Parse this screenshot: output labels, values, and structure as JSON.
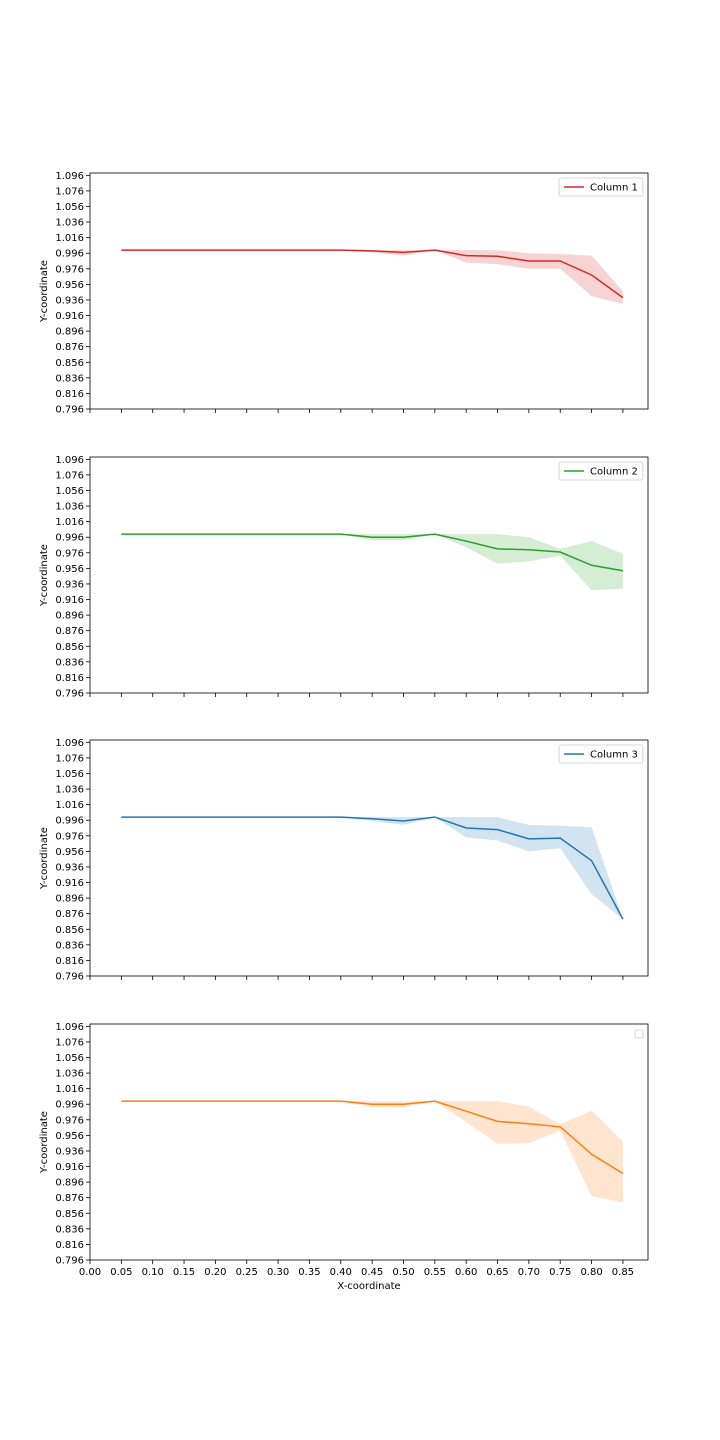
{
  "chart_data": [
    {
      "type": "line",
      "xlabel": "",
      "ylabel": "Y-coordinate",
      "xlim": [
        0.0,
        0.89
      ],
      "ylim": [
        0.796,
        1.099
      ],
      "yticks": [
        "0.796",
        "0.816",
        "0.836",
        "0.856",
        "0.876",
        "0.896",
        "0.916",
        "0.936",
        "0.956",
        "0.976",
        "0.996",
        "1.016",
        "1.036",
        "1.056",
        "1.076",
        "1.096"
      ],
      "show_xtick_labels": false,
      "grid": false,
      "legend": "top-right",
      "series": [
        {
          "name": "Column 1",
          "color": "#d62728",
          "x": [
            0.05,
            0.1,
            0.15,
            0.2,
            0.25,
            0.3,
            0.35,
            0.4,
            0.45,
            0.5,
            0.55,
            0.6,
            0.65,
            0.7,
            0.75,
            0.8,
            0.85
          ],
          "y": [
            1.0,
            1.0,
            1.0,
            1.0,
            1.0,
            1.0,
            1.0,
            1.0,
            0.999,
            0.997,
            1.0,
            0.993,
            0.992,
            0.986,
            0.986,
            0.968,
            0.939
          ],
          "lower": [
            1.0,
            1.0,
            1.0,
            1.0,
            1.0,
            1.0,
            1.0,
            1.0,
            0.997,
            0.993,
            1.0,
            0.984,
            0.982,
            0.976,
            0.976,
            0.941,
            0.931
          ],
          "upper": [
            1.0,
            1.0,
            1.0,
            1.0,
            1.0,
            1.0,
            1.0,
            1.0,
            1.0,
            1.0,
            1.0,
            1.0,
            1.0,
            0.996,
            0.995,
            0.993,
            0.947
          ]
        }
      ]
    },
    {
      "type": "line",
      "xlabel": "",
      "ylabel": "Y-coordinate",
      "xlim": [
        0.0,
        0.89
      ],
      "ylim": [
        0.796,
        1.099
      ],
      "yticks": [
        "0.796",
        "0.816",
        "0.836",
        "0.856",
        "0.876",
        "0.896",
        "0.916",
        "0.936",
        "0.956",
        "0.976",
        "0.996",
        "1.016",
        "1.036",
        "1.056",
        "1.076",
        "1.096"
      ],
      "show_xtick_labels": false,
      "grid": false,
      "legend": "top-right",
      "series": [
        {
          "name": "Column 2",
          "color": "#2ca02c",
          "x": [
            0.05,
            0.1,
            0.15,
            0.2,
            0.25,
            0.3,
            0.35,
            0.4,
            0.45,
            0.5,
            0.55,
            0.6,
            0.65,
            0.7,
            0.75,
            0.8,
            0.85
          ],
          "y": [
            1.0,
            1.0,
            1.0,
            1.0,
            1.0,
            1.0,
            1.0,
            1.0,
            0.996,
            0.996,
            1.0,
            0.991,
            0.981,
            0.98,
            0.977,
            0.96,
            0.953
          ],
          "lower": [
            1.0,
            1.0,
            1.0,
            1.0,
            1.0,
            1.0,
            1.0,
            1.0,
            0.992,
            0.992,
            1.0,
            0.983,
            0.962,
            0.965,
            0.972,
            0.928,
            0.93
          ],
          "upper": [
            1.0,
            1.0,
            1.0,
            1.0,
            1.0,
            1.0,
            1.0,
            1.0,
            1.0,
            1.0,
            1.0,
            1.0,
            1.0,
            0.996,
            0.981,
            0.991,
            0.975
          ]
        }
      ]
    },
    {
      "type": "line",
      "xlabel": "",
      "ylabel": "Y-coordinate",
      "xlim": [
        0.0,
        0.89
      ],
      "ylim": [
        0.796,
        1.099
      ],
      "yticks": [
        "0.796",
        "0.816",
        "0.836",
        "0.856",
        "0.876",
        "0.896",
        "0.916",
        "0.936",
        "0.956",
        "0.976",
        "0.996",
        "1.016",
        "1.036",
        "1.056",
        "1.076",
        "1.096"
      ],
      "show_xtick_labels": false,
      "grid": false,
      "legend": "top-right",
      "series": [
        {
          "name": "Column 3",
          "color": "#1f77b4",
          "x": [
            0.05,
            0.1,
            0.15,
            0.2,
            0.25,
            0.3,
            0.35,
            0.4,
            0.45,
            0.5,
            0.55,
            0.6,
            0.65,
            0.7,
            0.75,
            0.8,
            0.85
          ],
          "y": [
            1.0,
            1.0,
            1.0,
            1.0,
            1.0,
            1.0,
            1.0,
            1.0,
            0.998,
            0.995,
            1.0,
            0.986,
            0.984,
            0.972,
            0.973,
            0.944,
            0.869
          ],
          "lower": [
            1.0,
            1.0,
            1.0,
            1.0,
            1.0,
            1.0,
            1.0,
            1.0,
            0.995,
            0.99,
            1.0,
            0.974,
            0.97,
            0.956,
            0.96,
            0.901,
            0.869
          ],
          "upper": [
            1.0,
            1.0,
            1.0,
            1.0,
            1.0,
            1.0,
            1.0,
            1.0,
            1.0,
            1.0,
            1.0,
            1.0,
            1.0,
            0.99,
            0.989,
            0.987,
            0.869
          ]
        }
      ]
    },
    {
      "type": "line",
      "xlabel": "X-coordinate",
      "ylabel": "Y-coordinate",
      "xlim": [
        0.0,
        0.89
      ],
      "ylim": [
        0.796,
        1.099
      ],
      "yticks": [
        "0.796",
        "0.816",
        "0.836",
        "0.856",
        "0.876",
        "0.896",
        "0.916",
        "0.936",
        "0.956",
        "0.976",
        "0.996",
        "1.016",
        "1.036",
        "1.056",
        "1.076",
        "1.096"
      ],
      "xticks": [
        "0.00",
        "0.05",
        "0.10",
        "0.15",
        "0.20",
        "0.25",
        "0.30",
        "0.35",
        "0.40",
        "0.45",
        "0.50",
        "0.55",
        "0.60",
        "0.65",
        "0.70",
        "0.75",
        "0.80",
        "0.85"
      ],
      "show_xtick_labels": true,
      "grid": false,
      "legend": "top-right (empty)",
      "series": [
        {
          "name": "",
          "color": "#ff7f0e",
          "x": [
            0.05,
            0.1,
            0.15,
            0.2,
            0.25,
            0.3,
            0.35,
            0.4,
            0.45,
            0.5,
            0.55,
            0.6,
            0.65,
            0.7,
            0.75,
            0.8,
            0.85
          ],
          "y": [
            1.0,
            1.0,
            1.0,
            1.0,
            1.0,
            1.0,
            1.0,
            1.0,
            0.996,
            0.996,
            1.0,
            0.987,
            0.974,
            0.971,
            0.967,
            0.932,
            0.907
          ],
          "lower": [
            1.0,
            1.0,
            1.0,
            1.0,
            1.0,
            1.0,
            1.0,
            1.0,
            0.992,
            0.992,
            1.0,
            0.973,
            0.945,
            0.946,
            0.962,
            0.878,
            0.87
          ],
          "upper": [
            1.0,
            1.0,
            1.0,
            1.0,
            1.0,
            1.0,
            1.0,
            1.0,
            1.0,
            1.0,
            1.0,
            1.0,
            1.0,
            0.993,
            0.97,
            0.988,
            0.948
          ]
        }
      ]
    }
  ]
}
